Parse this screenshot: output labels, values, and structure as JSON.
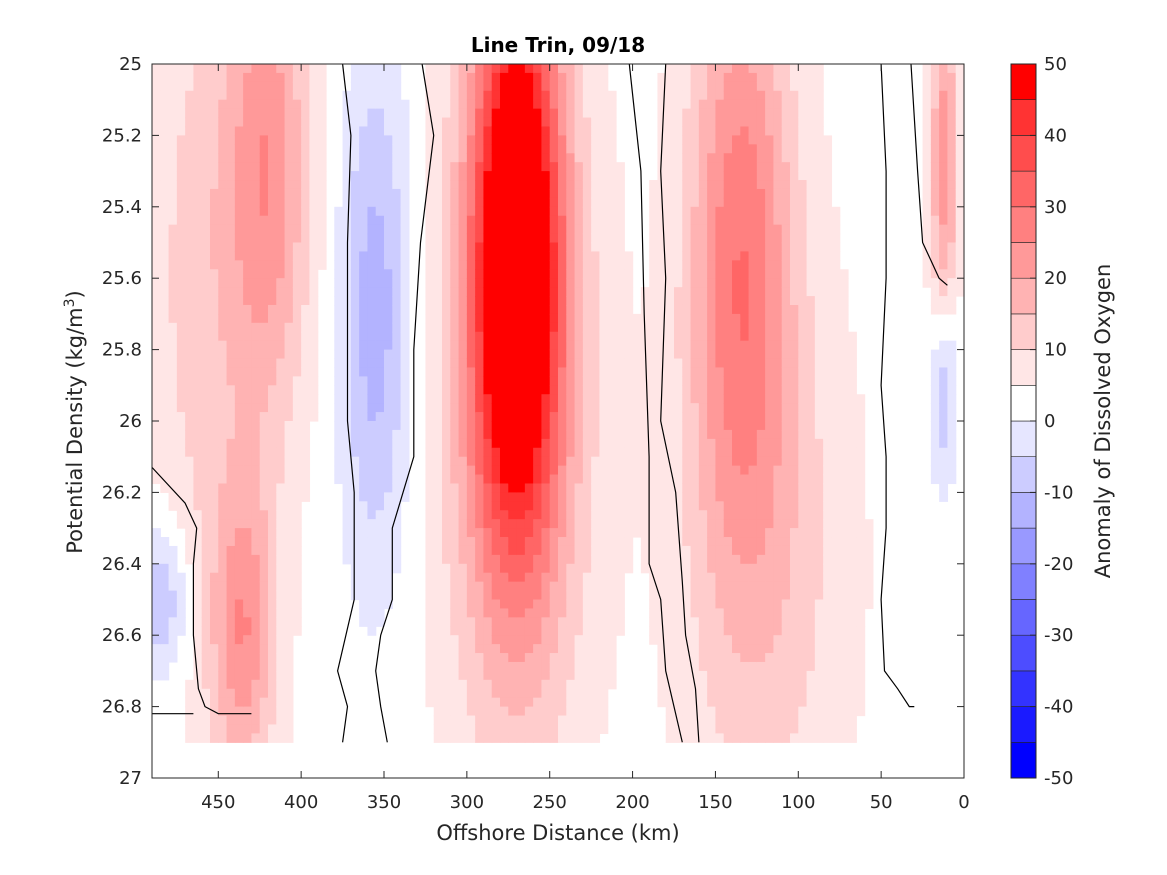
{
  "chart_data": {
    "type": "heatmap",
    "title": "Line Trin, 09/18",
    "xlabel": "Offshore Distance (km)",
    "ylabel_prefix": "Potential Density (kg/m",
    "ylabel_sup": "3",
    "ylabel_suffix": ")",
    "xlim": [
      490,
      0
    ],
    "ylim": [
      25,
      27
    ],
    "x_reversed": true,
    "y_reversed": true,
    "x_ticks": [
      450,
      400,
      350,
      300,
      250,
      200,
      150,
      100,
      50,
      0
    ],
    "y_ticks": [
      25,
      25.2,
      25.4,
      25.6,
      25.8,
      26,
      26.2,
      26.4,
      26.6,
      26.8,
      27
    ],
    "y_tick_labels": [
      "25",
      "25.2",
      "25.4",
      "25.6",
      "25.8",
      "26",
      "26.2",
      "26.4",
      "26.6",
      "26.8",
      "27"
    ],
    "colorbar": {
      "label": "Anomaly of Dissolved Oxygen",
      "range": [
        -50,
        50
      ],
      "ticks": [
        50,
        40,
        30,
        20,
        10,
        0,
        -10,
        -20,
        -30,
        -40,
        -50
      ],
      "levels": [
        {
          "lo": -50,
          "hi": -45,
          "color": "#0000ff"
        },
        {
          "lo": -45,
          "hi": -40,
          "color": "#1a1aff"
        },
        {
          "lo": -40,
          "hi": -35,
          "color": "#3333ff"
        },
        {
          "lo": -35,
          "hi": -30,
          "color": "#4d4dff"
        },
        {
          "lo": -30,
          "hi": -25,
          "color": "#6666ff"
        },
        {
          "lo": -25,
          "hi": -20,
          "color": "#8080ff"
        },
        {
          "lo": -20,
          "hi": -15,
          "color": "#9999ff"
        },
        {
          "lo": -15,
          "hi": -10,
          "color": "#b3b3ff"
        },
        {
          "lo": -10,
          "hi": -5,
          "color": "#ccccff"
        },
        {
          "lo": -5,
          "hi": 0,
          "color": "#e6e6ff"
        },
        {
          "lo": 0,
          "hi": 5,
          "color": "#ffffff"
        },
        {
          "lo": 5,
          "hi": 10,
          "color": "#ffe6e6"
        },
        {
          "lo": 10,
          "hi": 15,
          "color": "#ffcccc"
        },
        {
          "lo": 15,
          "hi": 20,
          "color": "#ffb3b3"
        },
        {
          "lo": 20,
          "hi": 25,
          "color": "#ff9999"
        },
        {
          "lo": 25,
          "hi": 30,
          "color": "#ff8080"
        },
        {
          "lo": 30,
          "hi": 35,
          "color": "#ff6666"
        },
        {
          "lo": 35,
          "hi": 40,
          "color": "#ff4d4d"
        },
        {
          "lo": 40,
          "hi": 45,
          "color": "#ff3333"
        },
        {
          "lo": 45,
          "hi": 50,
          "color": "#ff0000"
        }
      ]
    },
    "data_extent": {
      "sigma_max": 26.9
    },
    "field_features": [
      {
        "x": 270,
        "sigma": 25.5,
        "peak": 50,
        "sx": 18,
        "sy": 0.55
      },
      {
        "x": 270,
        "sigma": 25.9,
        "peak": 22,
        "sx": 30,
        "sy": 0.7
      },
      {
        "x": 135,
        "sigma": 25.5,
        "peak": 24,
        "sx": 22,
        "sy": 0.6
      },
      {
        "x": 120,
        "sigma": 26.4,
        "peak": 10,
        "sx": 35,
        "sy": 0.6
      },
      {
        "x": 420,
        "sigma": 25.3,
        "peak": 20,
        "sx": 18,
        "sy": 0.5
      },
      {
        "x": 435,
        "sigma": 26.6,
        "peak": 20,
        "sx": 14,
        "sy": 0.3
      },
      {
        "x": 460,
        "sigma": 25.6,
        "peak": 9,
        "sx": 25,
        "sy": 0.7
      },
      {
        "x": 355,
        "sigma": 25.7,
        "peak": -16,
        "sx": 15,
        "sy": 0.5
      },
      {
        "x": 485,
        "sigma": 26.5,
        "peak": -14,
        "sx": 12,
        "sy": 0.15
      },
      {
        "x": 12,
        "sigma": 25.3,
        "peak": 20,
        "sx": 6,
        "sy": 0.4
      },
      {
        "x": 12,
        "sigma": 25.9,
        "peak": -16,
        "sx": 6,
        "sy": 0.2
      }
    ],
    "zero_contours": [
      {
        "x": [
          490,
          470,
          463,
          465,
          465,
          462,
          458,
          450,
          440,
          430
        ],
        "sigma": [
          26.13,
          26.23,
          26.3,
          26.4,
          26.6,
          26.75,
          26.8,
          26.82,
          26.82,
          26.82
        ]
      },
      {
        "x": [
          465,
          478,
          490
        ],
        "sigma": [
          26.82,
          26.82,
          26.82
        ]
      },
      {
        "x": [
          375,
          370,
          372,
          372,
          368,
          368,
          378,
          372,
          375
        ],
        "sigma": [
          25,
          25.2,
          25.5,
          26.0,
          26.2,
          26.5,
          26.7,
          26.8,
          26.9
        ]
      },
      {
        "x": [
          327,
          320,
          328,
          332,
          332,
          345,
          345,
          352,
          355,
          352,
          348
        ],
        "sigma": [
          25,
          25.2,
          25.5,
          25.8,
          26.1,
          26.3,
          26.5,
          26.6,
          26.7,
          26.8,
          26.9
        ]
      },
      {
        "x": [
          180,
          183,
          180,
          183,
          174,
          170,
          168,
          162,
          160
        ],
        "sigma": [
          25.0,
          25.3,
          25.6,
          26.0,
          26.2,
          26.45,
          26.6,
          26.75,
          26.9
        ]
      },
      {
        "x": [
          202,
          195,
          193,
          190,
          190,
          183,
          180,
          175,
          170
        ],
        "sigma": [
          25.0,
          25.3,
          25.7,
          26.1,
          26.4,
          26.5,
          26.7,
          26.8,
          26.9
        ]
      },
      {
        "x": [
          50,
          47,
          47,
          50,
          47,
          47,
          50,
          48,
          40,
          33,
          30
        ],
        "sigma": [
          25.0,
          25.3,
          25.6,
          25.9,
          26.1,
          26.3,
          26.5,
          26.7,
          26.75,
          26.8,
          26.8
        ]
      },
      {
        "x": [
          32,
          30,
          28,
          25,
          20,
          15,
          10
        ],
        "sigma": [
          25.0,
          25.15,
          25.3,
          25.5,
          25.55,
          25.6,
          25.62
        ]
      }
    ]
  }
}
